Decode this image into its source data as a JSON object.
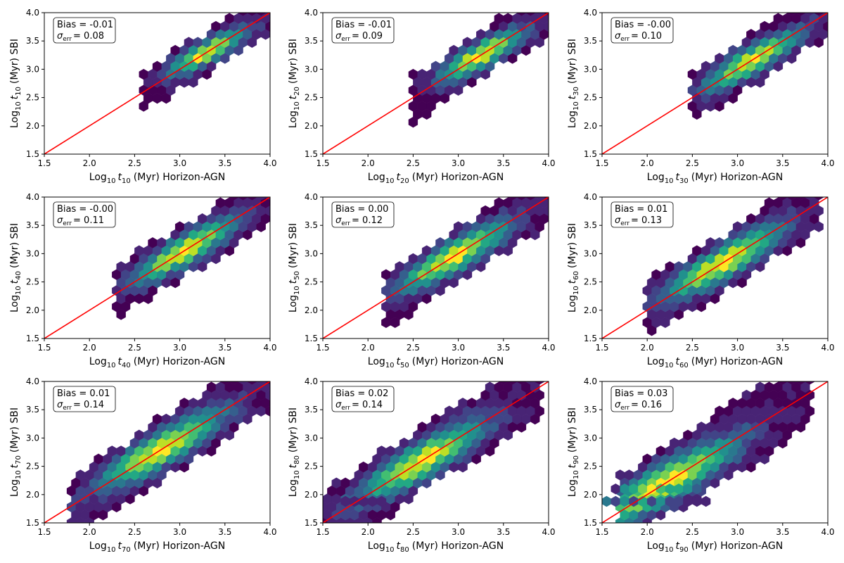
{
  "figure": {
    "description_free": true
  },
  "chart_data": [
    {
      "type": "hexbin",
      "param": "10",
      "xlabel_prefix": "Log",
      "xlabel_suffix": "(Myr) Horizon-AGN",
      "ylabel_suffix": "(Myr) SBI",
      "log_base": "10",
      "var": "t",
      "bias_label": "Bias = -0.01",
      "sigma_label": "= 0.08",
      "sigma_sym": "σ",
      "sigma_sub": "err",
      "xlim": [
        1.5,
        4.0
      ],
      "ylim": [
        1.5,
        4.0
      ],
      "xticks": [
        "1.5",
        "2.0",
        "2.5",
        "3.0",
        "3.5",
        "4.0"
      ],
      "yticks": [
        "1.5",
        "2.0",
        "2.5",
        "3.0",
        "3.5",
        "4.0"
      ],
      "x_range": [
        2.6,
        4.0
      ],
      "diag_width": 0.28,
      "peak": [
        3.3,
        3.3
      ],
      "spread": 0.18,
      "extra_hexes": []
    },
    {
      "type": "hexbin",
      "param": "20",
      "xlabel_prefix": "Log",
      "xlabel_suffix": "(Myr) Horizon-AGN",
      "ylabel_suffix": "(Myr) SBI",
      "log_base": "10",
      "var": "t",
      "bias_label": "Bias = -0.01",
      "sigma_label": "= 0.09",
      "sigma_sym": "σ",
      "sigma_sub": "err",
      "xlim": [
        1.5,
        4.0
      ],
      "ylim": [
        1.5,
        4.0
      ],
      "xticks": [
        "1.5",
        "2.0",
        "2.5",
        "3.0",
        "3.5",
        "4.0"
      ],
      "yticks": [
        "1.5",
        "2.0",
        "2.5",
        "3.0",
        "3.5",
        "4.0"
      ],
      "x_range": [
        2.5,
        4.0
      ],
      "diag_width": 0.32,
      "peak": [
        3.25,
        3.25
      ],
      "spread": 0.2,
      "extra_hexes": []
    },
    {
      "type": "hexbin",
      "param": "30",
      "xlabel_prefix": "Log",
      "xlabel_suffix": "(Myr) Horizon-AGN",
      "ylabel_suffix": "(Myr) SBI",
      "log_base": "10",
      "var": "t",
      "bias_label": "Bias = -0.00",
      "sigma_label": "= 0.10",
      "sigma_sym": "σ",
      "sigma_sub": "err",
      "xlim": [
        1.5,
        4.0
      ],
      "ylim": [
        1.5,
        4.0
      ],
      "xticks": [
        "1.5",
        "2.0",
        "2.5",
        "3.0",
        "3.5",
        "4.0"
      ],
      "yticks": [
        "1.5",
        "2.0",
        "2.5",
        "3.0",
        "3.5",
        "4.0"
      ],
      "x_range": [
        2.5,
        4.0
      ],
      "diag_width": 0.34,
      "peak": [
        3.15,
        3.15
      ],
      "spread": 0.22,
      "extra_hexes": []
    },
    {
      "type": "hexbin",
      "param": "40",
      "xlabel_prefix": "Log",
      "xlabel_suffix": "(Myr) Horizon-AGN",
      "ylabel_suffix": "(Myr) SBI",
      "log_base": "10",
      "var": "t",
      "bias_label": "Bias = -0.00",
      "sigma_label": "= 0.11",
      "sigma_sym": "σ",
      "sigma_sub": "err",
      "xlim": [
        1.5,
        4.0
      ],
      "ylim": [
        1.5,
        4.0
      ],
      "xticks": [
        "1.5",
        "2.0",
        "2.5",
        "3.0",
        "3.5",
        "4.0"
      ],
      "yticks": [
        "1.5",
        "2.0",
        "2.5",
        "3.0",
        "3.5",
        "4.0"
      ],
      "x_range": [
        2.3,
        4.0
      ],
      "diag_width": 0.36,
      "peak": [
        3.05,
        3.05
      ],
      "spread": 0.24,
      "extra_hexes": []
    },
    {
      "type": "hexbin",
      "param": "50",
      "xlabel_prefix": "Log",
      "xlabel_suffix": "(Myr) Horizon-AGN",
      "ylabel_suffix": "(Myr) SBI",
      "log_base": "10",
      "var": "t",
      "bias_label": "Bias = 0.00",
      "sigma_label": "= 0.12",
      "sigma_sym": "σ",
      "sigma_sub": "err",
      "xlim": [
        1.5,
        4.0
      ],
      "ylim": [
        1.5,
        4.0
      ],
      "xticks": [
        "1.5",
        "2.0",
        "2.5",
        "3.0",
        "3.5",
        "4.0"
      ],
      "yticks": [
        "1.5",
        "2.0",
        "2.5",
        "3.0",
        "3.5",
        "4.0"
      ],
      "x_range": [
        2.2,
        4.0
      ],
      "diag_width": 0.38,
      "peak": [
        2.95,
        2.95
      ],
      "spread": 0.26,
      "extra_hexes": []
    },
    {
      "type": "hexbin",
      "param": "60",
      "xlabel_prefix": "Log",
      "xlabel_suffix": "(Myr) Horizon-AGN",
      "ylabel_suffix": "(Myr) SBI",
      "log_base": "10",
      "var": "t",
      "bias_label": "Bias = 0.01",
      "sigma_label": "= 0.13",
      "sigma_sym": "σ",
      "sigma_sub": "err",
      "xlim": [
        1.5,
        4.0
      ],
      "ylim": [
        1.5,
        4.0
      ],
      "xticks": [
        "1.5",
        "2.0",
        "2.5",
        "3.0",
        "3.5",
        "4.0"
      ],
      "yticks": [
        "1.5",
        "2.0",
        "2.5",
        "3.0",
        "3.5",
        "4.0"
      ],
      "x_range": [
        2.0,
        3.9
      ],
      "diag_width": 0.4,
      "peak": [
        2.85,
        2.85
      ],
      "spread": 0.28,
      "extra_hexes": []
    },
    {
      "type": "hexbin",
      "param": "70",
      "xlabel_prefix": "Log",
      "xlabel_suffix": "(Myr) Horizon-AGN",
      "ylabel_suffix": "(Myr) SBI",
      "log_base": "10",
      "var": "t",
      "bias_label": "Bias = 0.01",
      "sigma_label": "= 0.14",
      "sigma_sym": "σ",
      "sigma_sub": "err",
      "xlim": [
        1.5,
        4.0
      ],
      "ylim": [
        1.5,
        4.0
      ],
      "xticks": [
        "1.5",
        "2.0",
        "2.5",
        "3.0",
        "3.5",
        "4.0"
      ],
      "yticks": [
        "1.5",
        "2.0",
        "2.5",
        "3.0",
        "3.5",
        "4.0"
      ],
      "x_range": [
        1.8,
        4.0
      ],
      "diag_width": 0.42,
      "peak": [
        2.8,
        2.8
      ],
      "spread": 0.3,
      "extra_hexes": []
    },
    {
      "type": "hexbin",
      "param": "80",
      "xlabel_prefix": "Log",
      "xlabel_suffix": "(Myr) Horizon-AGN",
      "ylabel_suffix": "(Myr) SBI",
      "log_base": "10",
      "var": "t",
      "bias_label": "Bias = 0.02",
      "sigma_label": "= 0.14",
      "sigma_sym": "σ",
      "sigma_sub": "err",
      "xlim": [
        1.5,
        4.0
      ],
      "ylim": [
        1.5,
        4.0
      ],
      "xticks": [
        "1.5",
        "2.0",
        "2.5",
        "3.0",
        "3.5",
        "4.0"
      ],
      "yticks": [
        "1.5",
        "2.0",
        "2.5",
        "3.0",
        "3.5",
        "4.0"
      ],
      "x_range": [
        1.5,
        3.9
      ],
      "diag_width": 0.44,
      "peak": [
        2.6,
        2.6
      ],
      "spread": 0.3,
      "extra_hexes": [
        [
          1.75,
          1.88,
          0.05
        ],
        [
          1.85,
          1.88,
          0.05
        ],
        [
          1.95,
          1.88,
          0.05
        ],
        [
          2.05,
          1.88,
          0.05
        ],
        [
          2.15,
          1.88,
          0.05
        ]
      ]
    },
    {
      "type": "hexbin",
      "param": "90",
      "xlabel_prefix": "Log",
      "xlabel_suffix": "(Myr) Horizon-AGN",
      "ylabel_suffix": "(Myr) SBI",
      "log_base": "10",
      "var": "t",
      "bias_label": "Bias = 0.03",
      "sigma_label": "= 0.16",
      "sigma_sym": "σ",
      "sigma_sub": "err",
      "xlim": [
        1.5,
        4.0
      ],
      "ylim": [
        1.5,
        4.0
      ],
      "xticks": [
        "1.5",
        "2.0",
        "2.5",
        "3.0",
        "3.5",
        "4.0"
      ],
      "yticks": [
        "1.5",
        "2.0",
        "2.5",
        "3.0",
        "3.5",
        "4.0"
      ],
      "x_range": [
        1.7,
        3.8
      ],
      "diag_width": 0.48,
      "peak": [
        2.2,
        2.2
      ],
      "spread": 0.35,
      "extra_hexes": [
        [
          1.55,
          1.88,
          0.4
        ],
        [
          1.65,
          1.88,
          0.2
        ],
        [
          1.75,
          1.88,
          0.45
        ],
        [
          1.85,
          1.88,
          0.2
        ],
        [
          1.95,
          1.88,
          0.55
        ],
        [
          2.05,
          1.88,
          0.2
        ],
        [
          2.15,
          1.88,
          0.45
        ],
        [
          2.25,
          1.88,
          0.15
        ],
        [
          2.35,
          1.88,
          0.2
        ],
        [
          2.45,
          1.88,
          0.1
        ],
        [
          2.55,
          1.88,
          0.1
        ],
        [
          2.65,
          1.88,
          0.05
        ],
        [
          1.65,
          2.1,
          0.05
        ],
        [
          1.75,
          2.1,
          0.45
        ],
        [
          1.85,
          2.1,
          0.6
        ],
        [
          1.95,
          2.1,
          0.8
        ],
        [
          2.05,
          2.1,
          0.95
        ],
        [
          2.15,
          2.1,
          0.65
        ],
        [
          2.25,
          2.1,
          0.55
        ],
        [
          2.35,
          2.1,
          0.6
        ],
        [
          2.45,
          2.1,
          0.5
        ],
        [
          2.55,
          2.1,
          0.3
        ]
      ]
    }
  ],
  "colors": {
    "identity_line": "#ff0000",
    "viridis": [
      "#440154",
      "#482475",
      "#414487",
      "#355f8d",
      "#2a788e",
      "#21908d",
      "#22a884",
      "#42be71",
      "#7ad151",
      "#bddf26",
      "#fde725"
    ]
  }
}
